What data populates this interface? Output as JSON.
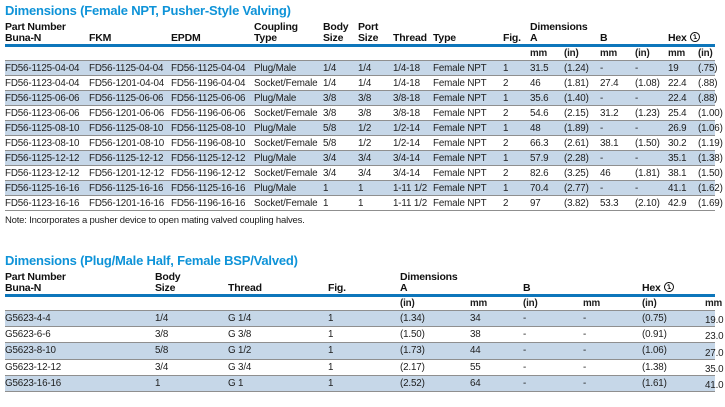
{
  "colors": {
    "title_blue": "#0e93d8",
    "rule_blue": "#0d76bb",
    "stripe": "#c6d7e8"
  },
  "table1": {
    "title": "Dimensions (Female NPT, Pusher-Style Valving)",
    "header": {
      "part_number": "Part Number",
      "buna": "Buna-N",
      "fkm": "FKM",
      "epdm": "EPDM",
      "coupling_top": "Coupling",
      "coupling_bottom": "Type",
      "body_top": "Body",
      "body_bottom": "Size",
      "port_top": "Port",
      "port_bottom": "Size",
      "thread": "Thread",
      "type": "Type",
      "fig": "Fig.",
      "dimensions": "Dimensions",
      "a": "A",
      "b": "B",
      "hex": "Hex",
      "hex_note_marker": "1",
      "units": [
        "mm",
        "(in)",
        "mm",
        "(in)",
        "mm",
        "(in)"
      ]
    },
    "rows": [
      [
        "FD56-1125-04-04",
        "FD56-1125-04-04",
        "FD56-1125-04-04",
        "Plug/Male",
        "1/4",
        "1/4",
        "1/4-18",
        "Female NPT",
        "1",
        "31.5",
        "(1.24)",
        "-",
        "-",
        "19",
        "(.75)"
      ],
      [
        "FD56-1123-04-04",
        "FD56-1201-04-04",
        "FD56-1196-04-04",
        "Socket/Female",
        "1/4",
        "1/4",
        "1/4-18",
        "Female NPT",
        "2",
        "46",
        "(1.81)",
        "27.4",
        "(1.08)",
        "22.4",
        "(.88)"
      ],
      [
        "FD56-1125-06-06",
        "FD56-1125-06-06",
        "FD56-1125-06-06",
        "Plug/Male",
        "3/8",
        "3/8",
        "3/8-18",
        "Female NPT",
        "1",
        "35.6",
        "(1.40)",
        "-",
        "-",
        "22.4",
        "(.88)"
      ],
      [
        "FD56-1123-06-06",
        "FD56-1201-06-06",
        "FD56-1196-06-06",
        "Socket/Female",
        "3/8",
        "3/8",
        "3/8-18",
        "Female NPT",
        "2",
        "54.6",
        "(2.15)",
        "31.2",
        "(1.23)",
        "25.4",
        "(1.00)"
      ],
      [
        "FD56-1125-08-10",
        "FD56-1125-08-10",
        "FD56-1125-08-10",
        "Plug/Male",
        "5/8",
        "1/2",
        "1/2-14",
        "Female NPT",
        "1",
        "48",
        "(1.89)",
        "-",
        "-",
        "26.9",
        "(1.06)"
      ],
      [
        "FD56-1123-08-10",
        "FD56-1201-08-10",
        "FD56-1196-08-10",
        "Socket/Female",
        "5/8",
        "1/2",
        "1/2-14",
        "Female NPT",
        "2",
        "66.3",
        "(2.61)",
        "38.1",
        "(1.50)",
        "30.2",
        "(1.19)"
      ],
      [
        "FD56-1125-12-12",
        "FD56-1125-12-12",
        "FD56-1125-12-12",
        "Plug/Male",
        "3/4",
        "3/4",
        "3/4-14",
        "Female NPT",
        "1",
        "57.9",
        "(2.28)",
        "-",
        "-",
        "35.1",
        "(1.38)"
      ],
      [
        "FD56-1123-12-12",
        "FD56-1201-12-12",
        "FD56-1196-12-12",
        "Socket/Female",
        "3/4",
        "3/4",
        "3/4-14",
        "Female NPT",
        "2",
        "82.6",
        "(3.25)",
        "46",
        "(1.81)",
        "38.1",
        "(1.50)"
      ],
      [
        "FD56-1125-16-16",
        "FD56-1125-16-16",
        "FD56-1125-16-16",
        "Plug/Male",
        "1",
        "1",
        "1-11 1/2",
        "Female NPT",
        "1",
        "70.4",
        "(2.77)",
        "-",
        "-",
        "41.1",
        "(1.62)"
      ],
      [
        "FD56-1123-16-16",
        "FD56-1201-16-16",
        "FD56-1196-16-16",
        "Socket/Female",
        "1",
        "1",
        "1-11 1/2",
        "Female NPT",
        "2",
        "97",
        "(3.82)",
        "53.3",
        "(2.10)",
        "42.9",
        "(1.69)"
      ]
    ],
    "note": "Note: Incorporates a pusher device to open mating valved coupling halves."
  },
  "table2": {
    "title": "Dimensions (Plug/Male Half, Female BSP/Valved)",
    "header": {
      "part_number": "Part Number",
      "buna": "Buna-N",
      "body_top": "Body",
      "body_bottom": "Size",
      "thread": "Thread",
      "fig": "Fig.",
      "dimensions": "Dimensions",
      "a": "A",
      "b": "B",
      "hex": "Hex",
      "hex_note_marker": "1",
      "units": [
        "(in)",
        "mm",
        "(in)",
        "mm",
        "(in)",
        "mm"
      ]
    },
    "rows": [
      [
        "G5623-4-4",
        "1/4",
        "G 1/4",
        "1",
        "(1.34)",
        "34",
        "-",
        "-",
        "(0.75)",
        "19.0"
      ],
      [
        "G5623-6-6",
        "3/8",
        "G 3/8",
        "1",
        "(1.50)",
        "38",
        "-",
        "-",
        "(0.91)",
        "23.0"
      ],
      [
        "G5623-8-10",
        "5/8",
        "G 1/2",
        "1",
        "(1.73)",
        "44",
        "-",
        "-",
        "(1.06)",
        "27.0"
      ],
      [
        "G5623-12-12",
        "3/4",
        "G 3/4",
        "1",
        "(2.17)",
        "55",
        "-",
        "-",
        "(1.38)",
        "35.0"
      ],
      [
        "G5623-16-16",
        "1",
        "G 1",
        "1",
        "(2.52)",
        "64",
        "-",
        "-",
        "(1.61)",
        "41.0"
      ]
    ]
  }
}
